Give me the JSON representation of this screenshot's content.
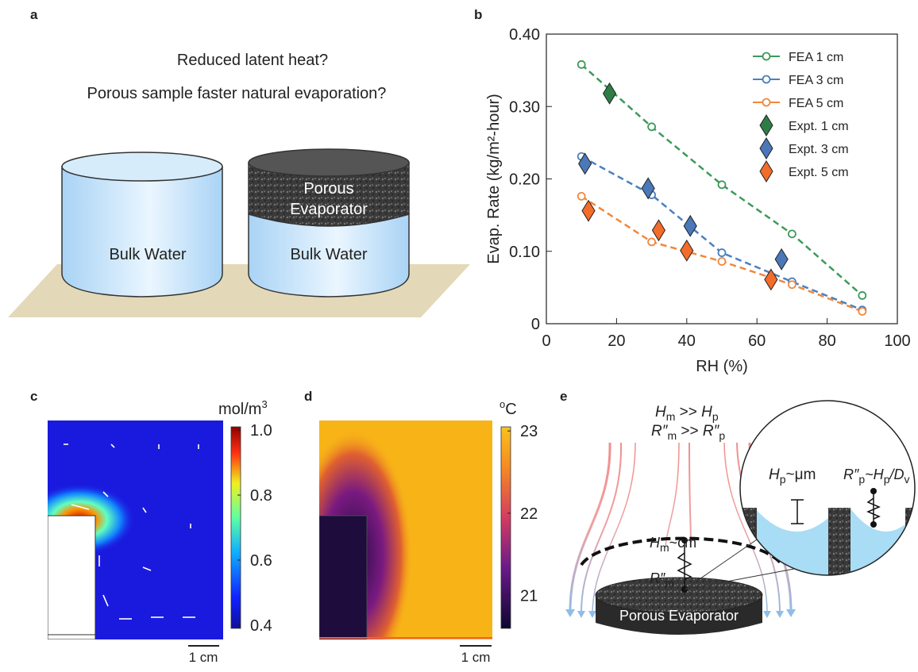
{
  "panels": {
    "a": {
      "letter": "a",
      "question_1": "Reduced latent heat?",
      "question_2": "Porous sample faster natural evaporation?",
      "left_label": "Bulk Water",
      "porous_label_1": "Porous",
      "porous_label_2": "Evaporator",
      "right_label": "Bulk Water"
    },
    "c": {
      "letter": "c",
      "unit": [
        "mol/m",
        "3"
      ],
      "clim": [
        0.39,
        1.01
      ],
      "cticks": [
        {
          "value": 1,
          "label": "1.0"
        },
        0.8,
        0.6,
        0.4
      ],
      "scale_bar": "1 cm"
    },
    "d": {
      "letter": "d",
      "unit": [
        "o",
        "C"
      ],
      "clim": [
        20.6,
        23.05
      ],
      "cticks": [
        23,
        22,
        21
      ],
      "scale_bar": "1 cm"
    },
    "e": {
      "letter": "e",
      "relation_h": [
        "H",
        "m",
        " >> ",
        "H",
        "p"
      ],
      "relation_r": [
        "R″",
        "m",
        " >> ",
        "R″",
        "p"
      ],
      "pore_height": [
        "H",
        "p",
        "~μm"
      ],
      "pore_resistance": [
        "R″",
        "p",
        "~H",
        "p",
        "/D",
        "v"
      ],
      "macro_height": [
        "H",
        "m",
        "~cm"
      ],
      "macro_resistance": [
        "R″",
        "m"
      ],
      "disk_label": "Porous Evaporator"
    }
  },
  "chart_data": {
    "type": "line",
    "letter": "b",
    "xlabel": "RH (%)",
    "ylabel": "Evap. Rate (kg/m²-hour)",
    "xlim": [
      0,
      100
    ],
    "xticks": [
      0,
      20,
      40,
      60,
      80,
      100
    ],
    "ylim": [
      0,
      0.4
    ],
    "yticks": [
      0,
      {
        "value": 0.1,
        "label": "0.10"
      },
      {
        "value": 0.2,
        "label": "0.20"
      },
      {
        "value": 0.3,
        "label": "0.30"
      },
      {
        "value": 0.4,
        "label": "0.40"
      }
    ],
    "legend": "upper right",
    "series": [
      {
        "name": "FEA 1 cm",
        "color": "#3c9a5a",
        "marker": "circle",
        "line": "dashed",
        "x": [
          10,
          30,
          50,
          70,
          90
        ],
        "values": [
          0.358,
          0.272,
          0.192,
          0.124,
          0.039
        ]
      },
      {
        "name": "FEA 3 cm",
        "color": "#4a80c0",
        "marker": "circle",
        "line": "dashed",
        "x": [
          10,
          30,
          50,
          70,
          90
        ],
        "values": [
          0.231,
          0.178,
          0.098,
          0.058,
          0.019
        ]
      },
      {
        "name": "FEA 5 cm",
        "color": "#f0883c",
        "marker": "circle",
        "line": "dashed",
        "x": [
          10,
          30,
          50,
          70,
          90
        ],
        "values": [
          0.176,
          0.113,
          0.086,
          0.054,
          0.017
        ]
      },
      {
        "name": "Expt. 1 cm",
        "color": "#2e7d46",
        "marker": "diamond",
        "x": [
          18
        ],
        "values": [
          0.318
        ]
      },
      {
        "name": "Expt. 3 cm",
        "color": "#4a78b8",
        "marker": "diamond",
        "x": [
          11,
          29,
          41,
          67
        ],
        "values": [
          0.221,
          0.187,
          0.135,
          0.089
        ]
      },
      {
        "name": "Expt. 5 cm",
        "color": "#f26c2a",
        "marker": "diamond",
        "x": [
          12,
          32,
          40,
          64
        ],
        "values": [
          0.156,
          0.129,
          0.101,
          0.061
        ]
      }
    ]
  }
}
